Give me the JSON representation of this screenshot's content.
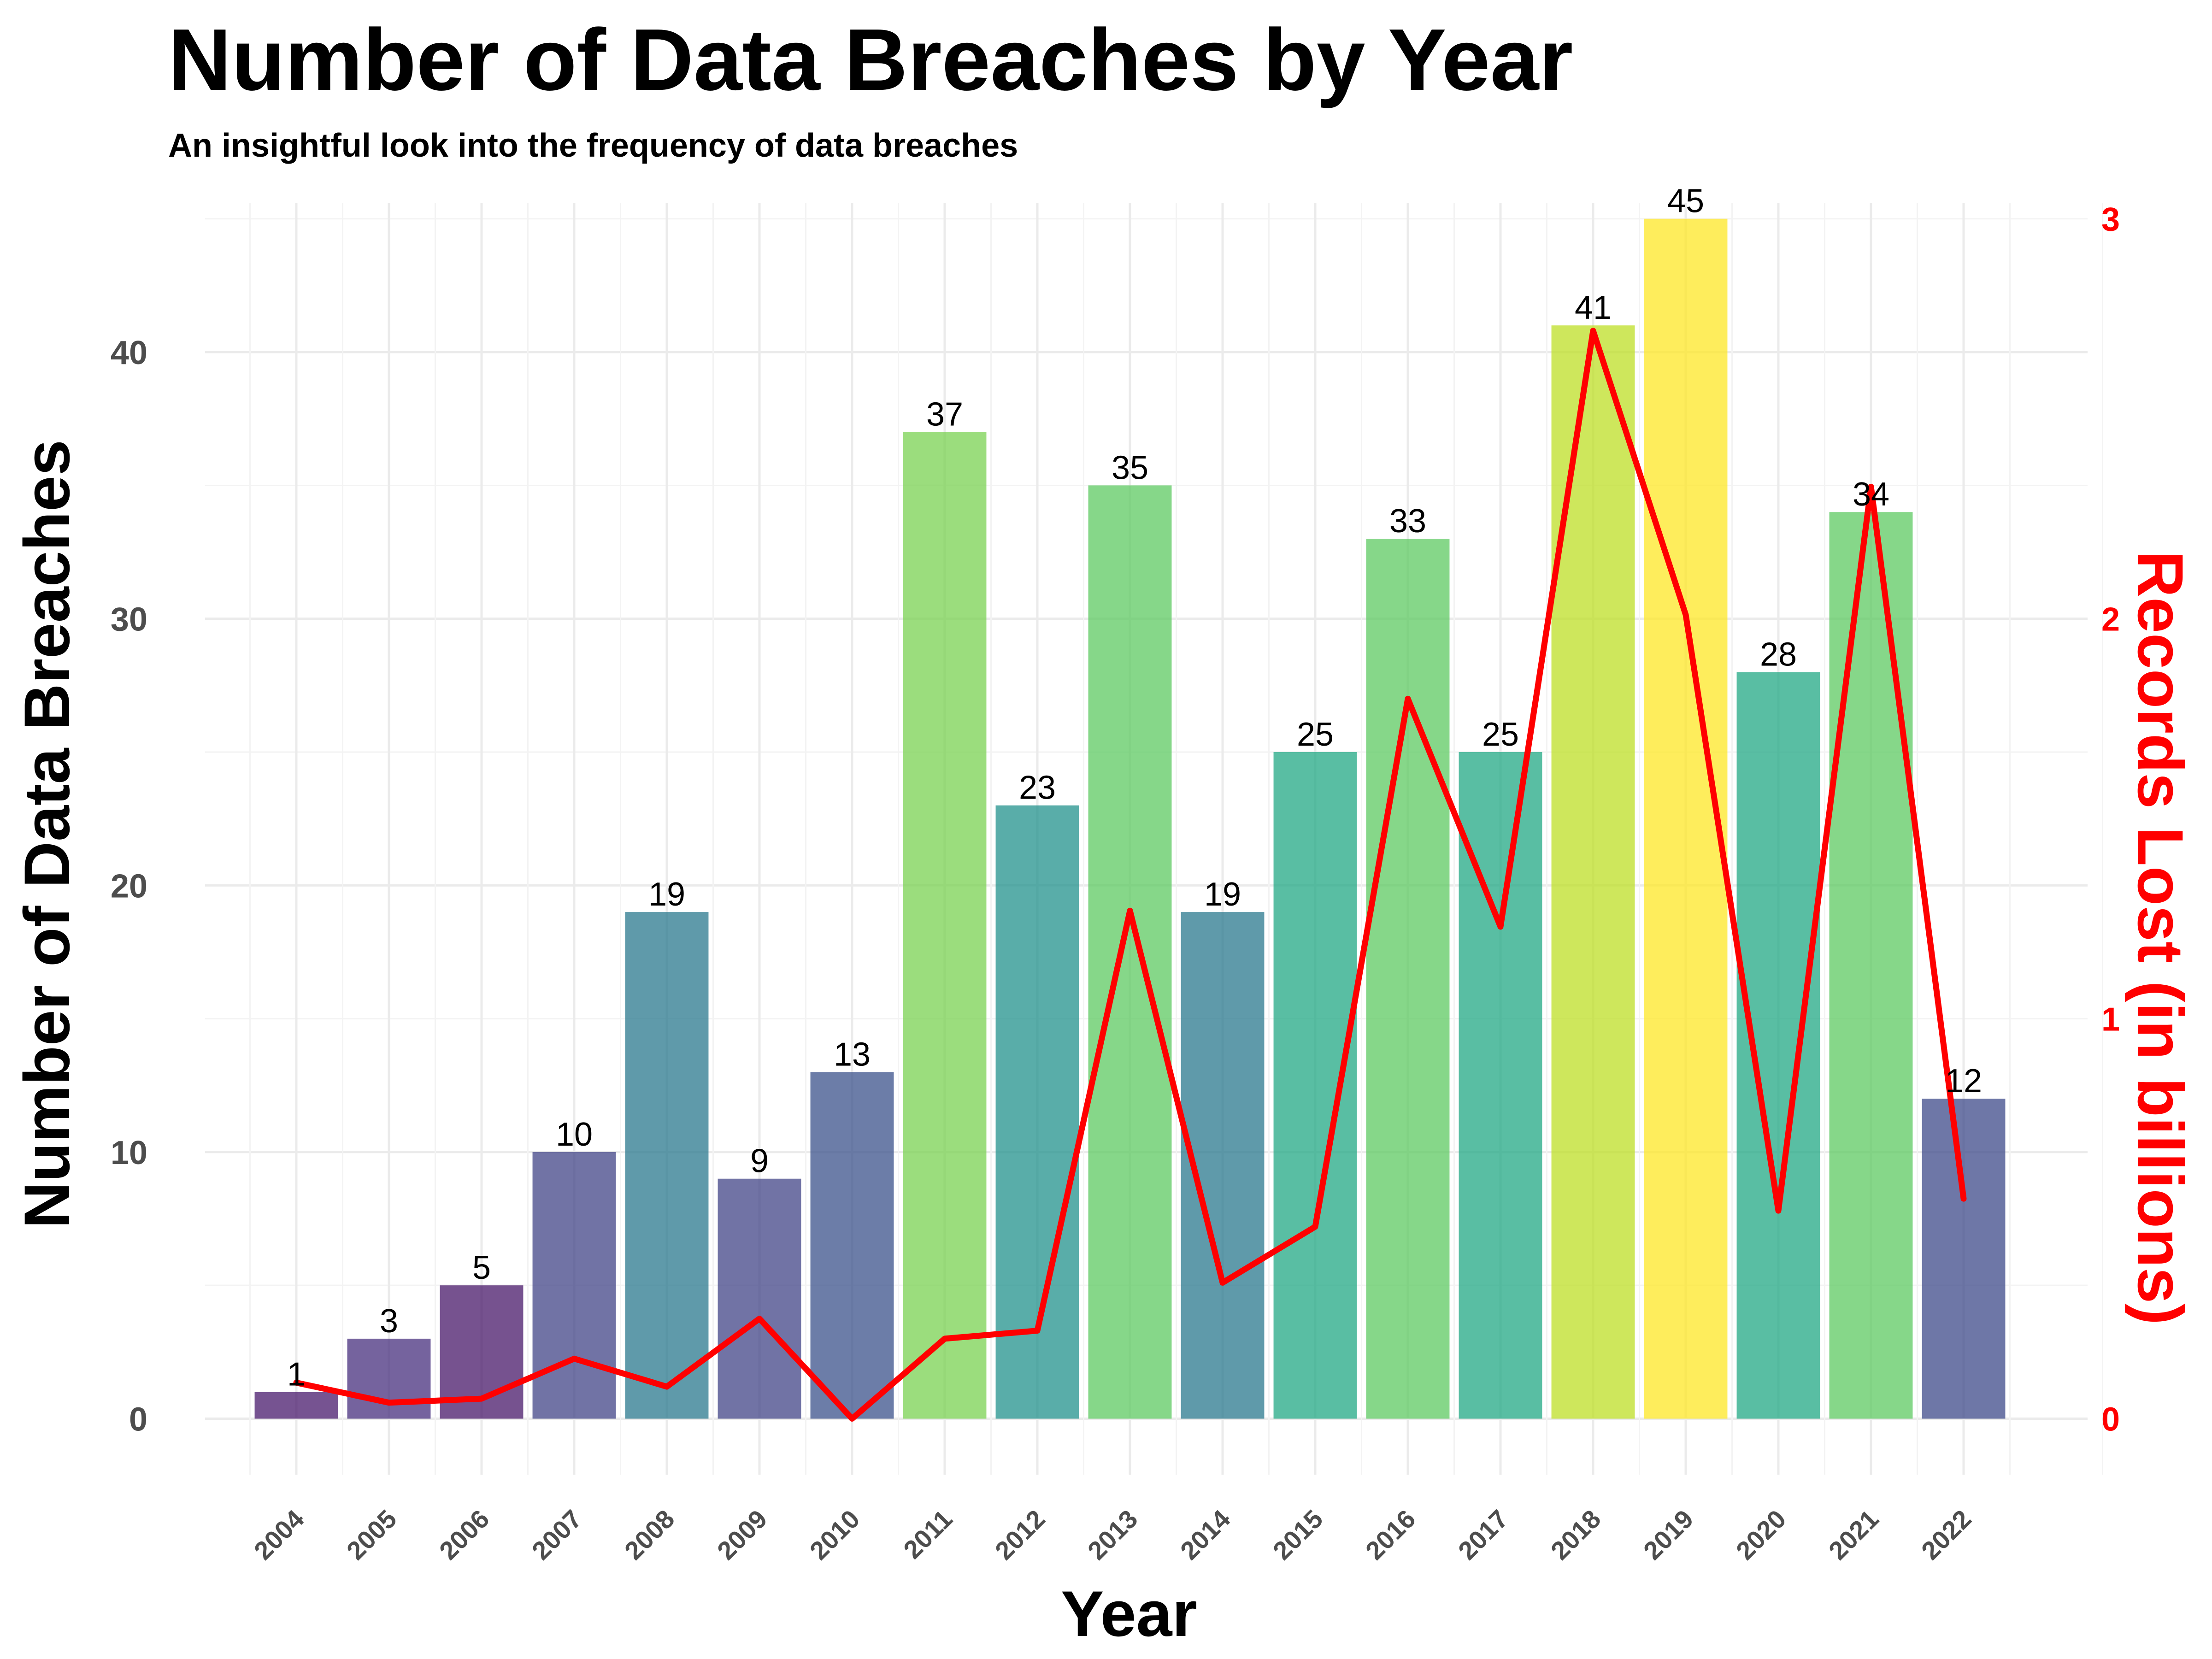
{
  "chart_data": {
    "type": "bar",
    "title": "Number of Data Breaches by Year",
    "subtitle": "An insightful look into the frequency of data breaches",
    "xlabel": "Year",
    "ylabel": "Number of Data Breaches",
    "y2label": "Records Lost (in billions)",
    "categories": [
      "2004",
      "2005",
      "2006",
      "2007",
      "2008",
      "2009",
      "2010",
      "2011",
      "2012",
      "2013",
      "2014",
      "2015",
      "2016",
      "2017",
      "2018",
      "2019",
      "2020",
      "2021",
      "2022"
    ],
    "series": [
      {
        "name": "Number of Data Breaches",
        "type": "bar",
        "axis": "left",
        "values": [
          1,
          3,
          5,
          10,
          19,
          9,
          13,
          37,
          23,
          35,
          19,
          25,
          33,
          25,
          41,
          45,
          28,
          34,
          12
        ],
        "colors": [
          "#481a6c",
          "#472f7d",
          "#48186a",
          "#414487",
          "#2a788e",
          "#414487",
          "#3b528b",
          "#7ad151",
          "#21918c",
          "#5ec962",
          "#2a788e",
          "#22a884",
          "#5ec962",
          "#22a884",
          "#bddf26",
          "#fde725",
          "#22a884",
          "#5ec962",
          "#3e4a89"
        ]
      },
      {
        "name": "Records Lost (in billions)",
        "type": "line",
        "axis": "right",
        "color": "#ff0000",
        "values": [
          0.09,
          0.04,
          0.05,
          0.15,
          0.08,
          0.25,
          0.0,
          0.2,
          0.22,
          1.27,
          0.34,
          0.48,
          1.8,
          1.23,
          2.72,
          2.01,
          0.52,
          2.33,
          0.55
        ]
      }
    ],
    "ylim": [
      -2.1,
      45.6
    ],
    "y_ticks": [
      0,
      10,
      20,
      30,
      40
    ],
    "y_ticks_labels": [
      "0",
      "10",
      "20",
      "30",
      "40"
    ],
    "y2lim": [
      0,
      3
    ],
    "y2_ticks": [
      0,
      1,
      2,
      3
    ],
    "y2_ticks_labels": [
      "0",
      "1",
      "2",
      "3"
    ],
    "grid": true,
    "legend": "none"
  }
}
